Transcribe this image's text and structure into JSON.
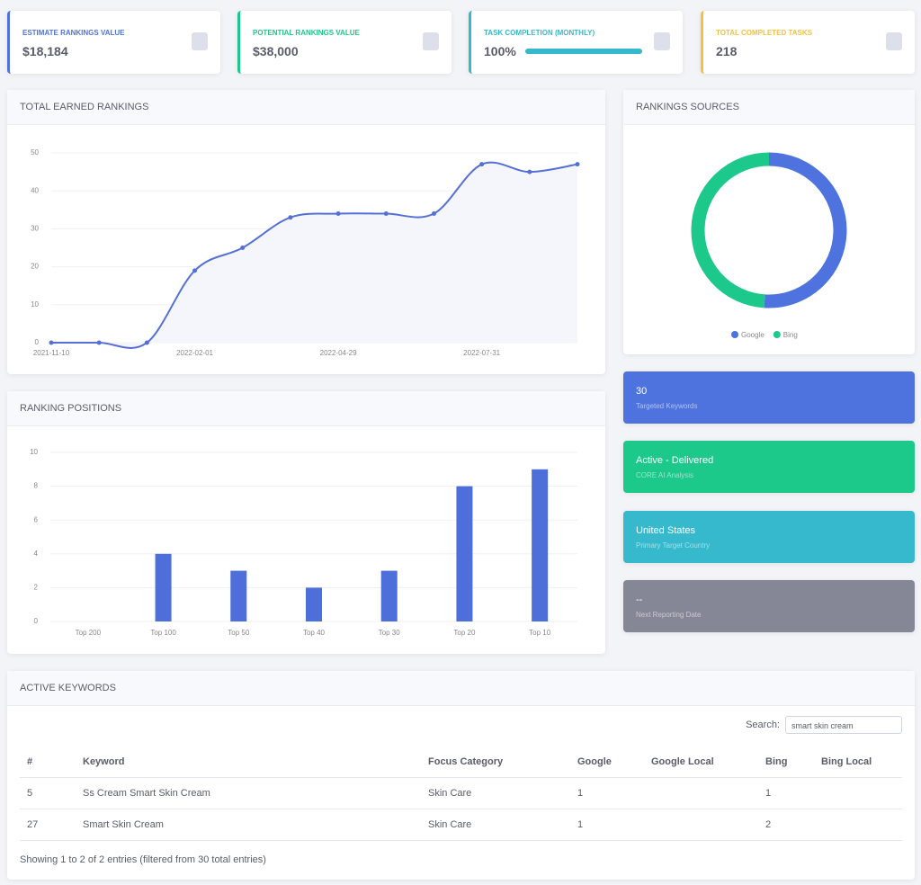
{
  "stat_cards": [
    {
      "label": "ESTIMATE RANKINGS VALUE",
      "value": "$18,184",
      "color": "#4e73df"
    },
    {
      "label": "POTENTIAL RANKINGS VALUE",
      "value": "$38,000",
      "color": "#1cc88a"
    },
    {
      "label": "TASK COMPLETION (MONTHLY)",
      "value": "100%",
      "progress": 100,
      "color": "#36b9cc"
    },
    {
      "label": "TOTAL COMPLETED TASKS",
      "value": "218",
      "color": "#f6c23e"
    }
  ],
  "chart_data": [
    {
      "type": "line",
      "title": "TOTAL EARNED RANKINGS",
      "categories": [
        "2021-11-10",
        null,
        null,
        "2022-02-01",
        null,
        null,
        "2022-04-29",
        null,
        null,
        "2022-07-31",
        null,
        null
      ],
      "series": [
        {
          "name": "Rankings",
          "color": "#5470d6",
          "values": [
            0,
            0,
            0,
            19,
            25,
            33,
            34,
            34,
            34,
            47,
            45,
            47
          ]
        }
      ],
      "ylim": [
        0,
        50
      ],
      "yticks": [
        0,
        10,
        20,
        30,
        40,
        50
      ],
      "grid": true
    },
    {
      "type": "pie",
      "title": "RANKINGS SOURCES",
      "categories": [
        "Google",
        "Bing"
      ],
      "values": [
        51,
        49
      ],
      "colors": [
        "#4e73df",
        "#1cc88a"
      ]
    },
    {
      "type": "bar",
      "title": "RANKING POSITIONS",
      "categories": [
        "Top 200",
        "Top 100",
        "Top 50",
        "Top 40",
        "Top 30",
        "Top 20",
        "Top 10"
      ],
      "values": [
        0,
        4,
        3,
        2,
        3,
        8,
        9
      ],
      "color": "#4e6fd9",
      "ylim": [
        0,
        10
      ],
      "yticks": [
        0,
        2,
        4,
        6,
        8,
        10
      ],
      "grid": true
    }
  ],
  "info_cards": [
    {
      "value": "30",
      "label": "Targeted Keywords",
      "color": "#4e73df"
    },
    {
      "value": "Active - Delivered",
      "label": "CORE AI Analysis",
      "color": "#1cc88a"
    },
    {
      "value": "United States",
      "label": "Primary Target Country",
      "color": "#36b9cc"
    },
    {
      "value": "--",
      "label": "Next Reporting Date",
      "color": "#858796"
    }
  ],
  "table": {
    "title": "ACTIVE KEYWORDS",
    "search_label": "Search:",
    "search_value": "smart skin cream",
    "headers": [
      "#",
      "Keyword",
      "Focus Category",
      "Google",
      "Google Local",
      "Bing",
      "Bing Local"
    ],
    "rows": [
      {
        "id": "5",
        "keyword": "Ss Cream Smart Skin Cream",
        "category": "Skin Care",
        "google": "1",
        "bing": "1"
      },
      {
        "id": "27",
        "keyword": "Smart Skin Cream",
        "category": "Skin Care",
        "google": "1",
        "bing": "2"
      }
    ],
    "footer": "Showing 1 to 2 of 2 entries (filtered from 30 total entries)"
  }
}
